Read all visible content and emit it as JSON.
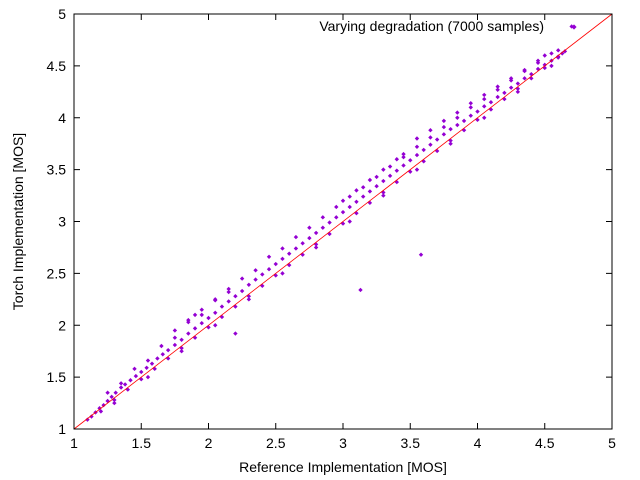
{
  "chart_data": {
    "type": "scatter",
    "title": "",
    "xlabel": "Reference Implementation [MOS]",
    "ylabel": "Torch Implementation [MOS]",
    "xlim": [
      1,
      5
    ],
    "ylim": [
      1,
      5
    ],
    "xticks": [
      "1",
      "1.5",
      "2",
      "2.5",
      "3",
      "3.5",
      "4",
      "4.5",
      "5"
    ],
    "yticks": [
      "1",
      "1.5",
      "2",
      "2.5",
      "3",
      "3.5",
      "4",
      "4.5",
      "5"
    ],
    "grid": false,
    "legend_position": "top-right",
    "reference_line": {
      "from": [
        1,
        1
      ],
      "to": [
        5,
        5
      ],
      "color": "#ff0000"
    },
    "series": [
      {
        "name": "Varying degradation (7000 samples)",
        "color": "#9400d3",
        "marker": "diamond",
        "points": [
          [
            1.1,
            1.09
          ],
          [
            1.13,
            1.12
          ],
          [
            1.16,
            1.16
          ],
          [
            1.19,
            1.2
          ],
          [
            1.22,
            1.23
          ],
          [
            1.25,
            1.27
          ],
          [
            1.28,
            1.31
          ],
          [
            1.31,
            1.35
          ],
          [
            1.35,
            1.4
          ],
          [
            1.38,
            1.43
          ],
          [
            1.42,
            1.47
          ],
          [
            1.46,
            1.51
          ],
          [
            1.5,
            1.55
          ],
          [
            1.54,
            1.59
          ],
          [
            1.58,
            1.63
          ],
          [
            1.62,
            1.68
          ],
          [
            1.66,
            1.72
          ],
          [
            1.7,
            1.76
          ],
          [
            1.75,
            1.81
          ],
          [
            1.8,
            1.86
          ],
          [
            1.85,
            1.92
          ],
          [
            1.9,
            1.97
          ],
          [
            1.95,
            2.02
          ],
          [
            2.0,
            2.07
          ],
          [
            2.05,
            2.12
          ],
          [
            2.1,
            2.18
          ],
          [
            2.15,
            2.23
          ],
          [
            2.2,
            2.28
          ],
          [
            2.25,
            2.33
          ],
          [
            2.3,
            2.39
          ],
          [
            2.35,
            2.44
          ],
          [
            2.4,
            2.49
          ],
          [
            2.45,
            2.54
          ],
          [
            2.5,
            2.59
          ],
          [
            2.55,
            2.64
          ],
          [
            2.6,
            2.69
          ],
          [
            2.65,
            2.74
          ],
          [
            2.7,
            2.79
          ],
          [
            2.75,
            2.84
          ],
          [
            2.8,
            2.89
          ],
          [
            2.85,
            2.94
          ],
          [
            2.9,
            2.99
          ],
          [
            2.95,
            3.04
          ],
          [
            3.0,
            3.09
          ],
          [
            3.05,
            3.14
          ],
          [
            3.1,
            3.19
          ],
          [
            3.15,
            3.24
          ],
          [
            3.2,
            3.29
          ],
          [
            3.25,
            3.34
          ],
          [
            3.3,
            3.39
          ],
          [
            3.35,
            3.44
          ],
          [
            3.4,
            3.49
          ],
          [
            3.45,
            3.54
          ],
          [
            3.5,
            3.59
          ],
          [
            3.55,
            3.64
          ],
          [
            3.6,
            3.69
          ],
          [
            3.65,
            3.74
          ],
          [
            3.7,
            3.79
          ],
          [
            3.75,
            3.84
          ],
          [
            3.8,
            3.89
          ],
          [
            3.85,
            3.93
          ],
          [
            3.9,
            3.97
          ],
          [
            3.95,
            4.02
          ],
          [
            4.0,
            4.06
          ],
          [
            4.05,
            4.11
          ],
          [
            4.1,
            4.15
          ],
          [
            4.15,
            4.2
          ],
          [
            4.2,
            4.24
          ],
          [
            4.25,
            4.29
          ],
          [
            4.3,
            4.33
          ],
          [
            4.35,
            4.38
          ],
          [
            4.4,
            4.42
          ],
          [
            4.45,
            4.47
          ],
          [
            4.5,
            4.51
          ],
          [
            4.55,
            4.55
          ],
          [
            4.6,
            4.59
          ],
          [
            4.63,
            4.62
          ],
          [
            4.65,
            4.64
          ],
          [
            1.2,
            1.17
          ],
          [
            1.3,
            1.28
          ],
          [
            1.4,
            1.38
          ],
          [
            1.5,
            1.48
          ],
          [
            1.6,
            1.58
          ],
          [
            1.7,
            1.68
          ],
          [
            1.8,
            1.78
          ],
          [
            1.9,
            1.88
          ],
          [
            2.0,
            1.98
          ],
          [
            2.1,
            2.08
          ],
          [
            2.2,
            2.18
          ],
          [
            2.3,
            2.28
          ],
          [
            2.4,
            2.38
          ],
          [
            2.5,
            2.48
          ],
          [
            2.6,
            2.58
          ],
          [
            2.7,
            2.68
          ],
          [
            2.8,
            2.78
          ],
          [
            2.9,
            2.88
          ],
          [
            3.0,
            2.98
          ],
          [
            3.1,
            3.08
          ],
          [
            3.2,
            3.18
          ],
          [
            3.3,
            3.28
          ],
          [
            3.4,
            3.38
          ],
          [
            3.5,
            3.48
          ],
          [
            3.6,
            3.58
          ],
          [
            3.7,
            3.68
          ],
          [
            3.8,
            3.78
          ],
          [
            3.9,
            3.88
          ],
          [
            4.0,
            3.98
          ],
          [
            4.1,
            4.08
          ],
          [
            4.2,
            4.18
          ],
          [
            4.3,
            4.28
          ],
          [
            4.4,
            4.38
          ],
          [
            4.5,
            4.48
          ],
          [
            4.6,
            4.58
          ],
          [
            1.25,
            1.35
          ],
          [
            1.45,
            1.58
          ],
          [
            1.65,
            1.8
          ],
          [
            1.85,
            2.03
          ],
          [
            2.05,
            2.24
          ],
          [
            2.25,
            2.45
          ],
          [
            2.45,
            2.66
          ],
          [
            2.65,
            2.85
          ],
          [
            2.85,
            3.04
          ],
          [
            3.05,
            3.24
          ],
          [
            3.25,
            3.43
          ],
          [
            3.45,
            3.62
          ],
          [
            3.65,
            3.81
          ],
          [
            3.85,
            4.0
          ],
          [
            4.05,
            4.18
          ],
          [
            4.25,
            4.36
          ],
          [
            4.45,
            4.53
          ],
          [
            1.35,
            1.44
          ],
          [
            1.55,
            1.66
          ],
          [
            1.75,
            1.88
          ],
          [
            1.95,
            2.1
          ],
          [
            2.15,
            2.32
          ],
          [
            2.35,
            2.53
          ],
          [
            2.55,
            2.74
          ],
          [
            2.75,
            2.94
          ],
          [
            2.95,
            3.14
          ],
          [
            3.15,
            3.33
          ],
          [
            3.35,
            3.53
          ],
          [
            3.55,
            3.72
          ],
          [
            3.75,
            3.91
          ],
          [
            3.95,
            4.1
          ],
          [
            4.15,
            4.27
          ],
          [
            4.35,
            4.45
          ],
          [
            4.55,
            4.62
          ],
          [
            1.3,
            1.25
          ],
          [
            1.55,
            1.5
          ],
          [
            1.8,
            1.75
          ],
          [
            2.05,
            2.0
          ],
          [
            2.3,
            2.25
          ],
          [
            2.55,
            2.5
          ],
          [
            2.8,
            2.75
          ],
          [
            3.05,
            3.0
          ],
          [
            3.3,
            3.25
          ],
          [
            3.55,
            3.5
          ],
          [
            3.8,
            3.75
          ],
          [
            4.05,
            4.0
          ],
          [
            4.3,
            4.25
          ],
          [
            4.55,
            4.5
          ],
          [
            3.45,
            3.65
          ],
          [
            3.55,
            3.8
          ],
          [
            3.65,
            3.88
          ],
          [
            3.75,
            3.97
          ],
          [
            3.85,
            4.05
          ],
          [
            3.95,
            4.14
          ],
          [
            4.05,
            4.22
          ],
          [
            4.15,
            4.3
          ],
          [
            4.25,
            4.38
          ],
          [
            4.35,
            4.46
          ],
          [
            4.45,
            4.55
          ],
          [
            4.5,
            4.6
          ],
          [
            4.6,
            4.65
          ],
          [
            1.9,
            2.1
          ],
          [
            1.95,
            2.15
          ],
          [
            2.05,
            2.25
          ],
          [
            2.15,
            2.35
          ],
          [
            1.75,
            1.95
          ],
          [
            1.85,
            2.05
          ],
          [
            3.0,
            3.2
          ],
          [
            3.1,
            3.3
          ],
          [
            3.2,
            3.4
          ],
          [
            3.3,
            3.5
          ],
          [
            3.4,
            3.6
          ],
          [
            2.2,
            1.92
          ],
          [
            3.13,
            2.34
          ],
          [
            3.58,
            2.68
          ],
          [
            4.7,
            4.88
          ]
        ]
      }
    ]
  }
}
